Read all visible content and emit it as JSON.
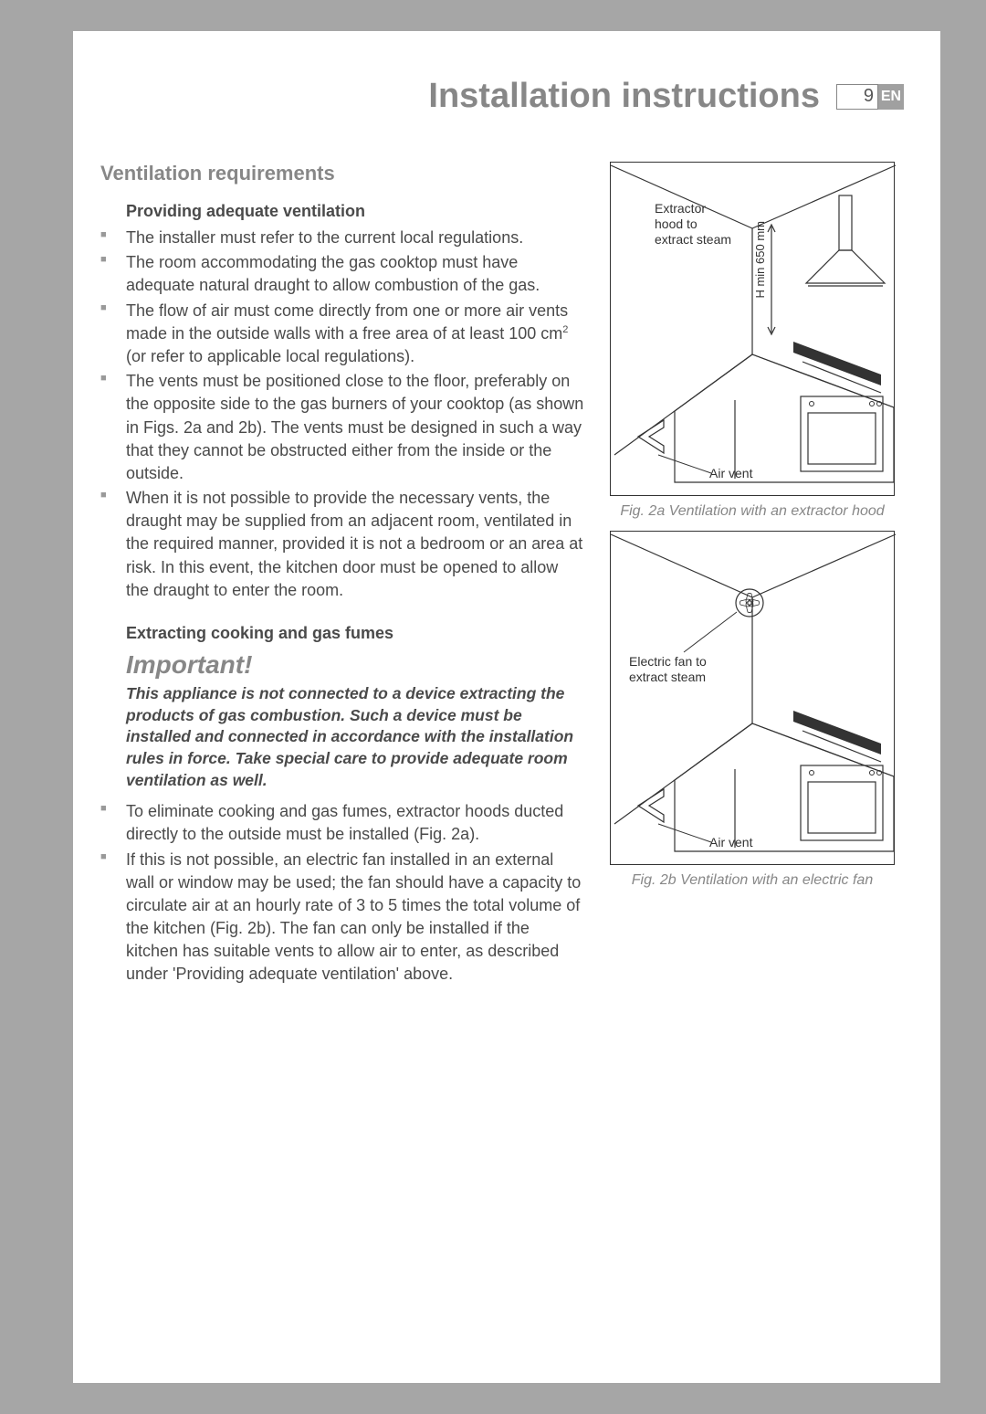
{
  "header": {
    "title": "Installation instructions",
    "page_number": "9",
    "lang": "EN"
  },
  "section_heading": "Ventilation requirements",
  "sub1": "Providing adequate ventilation",
  "bullets1": [
    "The installer must refer to the current local regulations.",
    "The room accommodating the gas cooktop must have adequate natural draught to allow combustion of the gas.",
    "The flow of air must come directly from one or more air vents made in the outside walls with a free area of at least 100 cm² (or refer to applicable local regulations).",
    "The vents must be positioned close to the floor, preferably on the opposite side to the gas burners of your cooktop (as shown in Figs. 2a and 2b). The vents must be designed in such a way that they cannot be obstructed either from the inside or the outside.",
    "When it is not possible to provide the necessary vents, the draught may be supplied from an adjacent room, ventilated in the required manner, provided it is not a bedroom or an area at risk. In this event, the kitchen door must be opened to allow the draught to enter the room."
  ],
  "sub2": "Extracting cooking and gas fumes",
  "important_head": "Important!",
  "important_body": "This appliance is not connected to a device extracting the products of gas combustion. Such a device must be installed and connected in accordance with the installation rules in force. Take special care to provide adequate room ventilation as well.",
  "bullets2": [
    "To eliminate cooking and gas fumes, extractor hoods ducted directly to the outside must be installed (Fig. 2a).",
    "If this is not possible, an electric fan installed in an external wall or window may be used; the fan should have a capacity to circulate air at an hourly rate of 3 to 5 times the total volume of the kitchen (Fig. 2b). The fan can only be installed if the kitchen has suitable vents to allow air to enter, as described under 'Providing adequate ventilation' above."
  ],
  "fig2a": {
    "label1": "Extractor hood to extract steam",
    "label2": "H min 650 mm",
    "label3": "Air vent",
    "caption": "Fig. 2a Ventilation with an extractor hood"
  },
  "fig2b": {
    "label1": "Electric fan to extract steam",
    "label2": "Air vent",
    "caption": "Fig. 2b Ventilation with an electric fan"
  },
  "colors": {
    "page_bg": "#a6a6a6",
    "paper": "#ffffff",
    "heading": "#878787",
    "body": "#4a4a4a",
    "bullet": "#999999",
    "line": "#333333"
  }
}
